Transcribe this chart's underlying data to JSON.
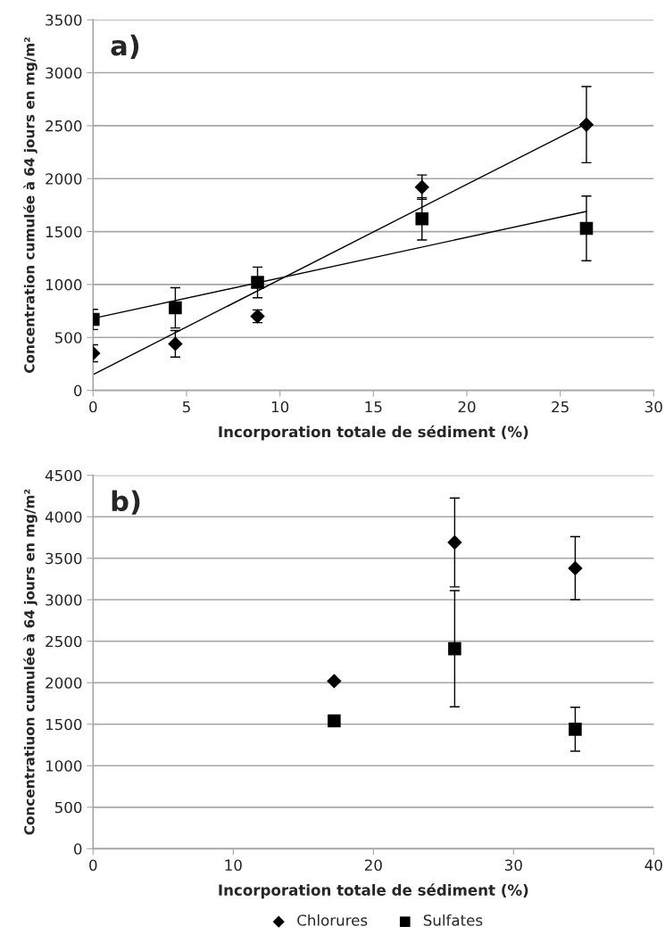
{
  "chart_data": [
    {
      "type": "scatter",
      "xlabel": "Incorporation totale de sédiment (%)",
      "ylabel": "Concentration cumulée à 64 jours en mg/m²",
      "annotations": [
        "a)"
      ],
      "xlim": [
        0,
        30
      ],
      "xticks": [
        0,
        5,
        10,
        15,
        20,
        25,
        30
      ],
      "ylim": [
        0,
        3500
      ],
      "yticks": [
        0,
        500,
        1000,
        1500,
        2000,
        2500,
        3000,
        3500
      ],
      "grid": "y",
      "legend": false,
      "series": [
        {
          "color": "#000000",
          "marker": "diamond",
          "x": [
            0,
            4.4,
            8.8,
            17.6,
            26.4
          ],
          "values": [
            350,
            440,
            700,
            1920,
            2510
          ],
          "errors": [
            80,
            125,
            60,
            115,
            360
          ]
        },
        {
          "color": "#000000",
          "marker": "square",
          "x": [
            0,
            4.4,
            8.8,
            17.6,
            26.4
          ],
          "values": [
            670,
            780,
            1020,
            1620,
            1530
          ],
          "errors": [
            95,
            190,
            145,
            200,
            305
          ]
        },
        {
          "type": "line",
          "color": "#000000",
          "marker": "none",
          "x": [
            0,
            26.4
          ],
          "values": [
            150,
            2520
          ]
        },
        {
          "type": "line",
          "color": "#000000",
          "marker": "none",
          "x": [
            0,
            26.4
          ],
          "values": [
            680,
            1690
          ]
        }
      ]
    },
    {
      "type": "scatter",
      "xlabel": "Incorporation totale de sédiment (%)",
      "ylabel": "Concentratiuon cumulée à 64 jours en mg/m²",
      "annotations": [
        "b)"
      ],
      "xlim": [
        0,
        40
      ],
      "xticks": [
        0,
        10,
        20,
        30,
        40
      ],
      "ylim": [
        0,
        4500
      ],
      "yticks": [
        0,
        500,
        1000,
        1500,
        2000,
        2500,
        3000,
        3500,
        4000,
        4500
      ],
      "grid": "y",
      "legend": "bottom",
      "series": [
        {
          "name": "Chlorures",
          "color": "#000000",
          "marker": "diamond",
          "x": [
            17.2,
            25.8,
            34.4
          ],
          "values": [
            2020,
            3690,
            3380
          ],
          "errors": [
            null,
            535,
            380
          ]
        },
        {
          "name": "Sulfates",
          "color": "#000000",
          "marker": "square",
          "x": [
            17.2,
            25.8,
            34.4
          ],
          "values": [
            1540,
            2410,
            1440
          ],
          "errors": [
            null,
            700,
            265
          ]
        }
      ]
    }
  ]
}
